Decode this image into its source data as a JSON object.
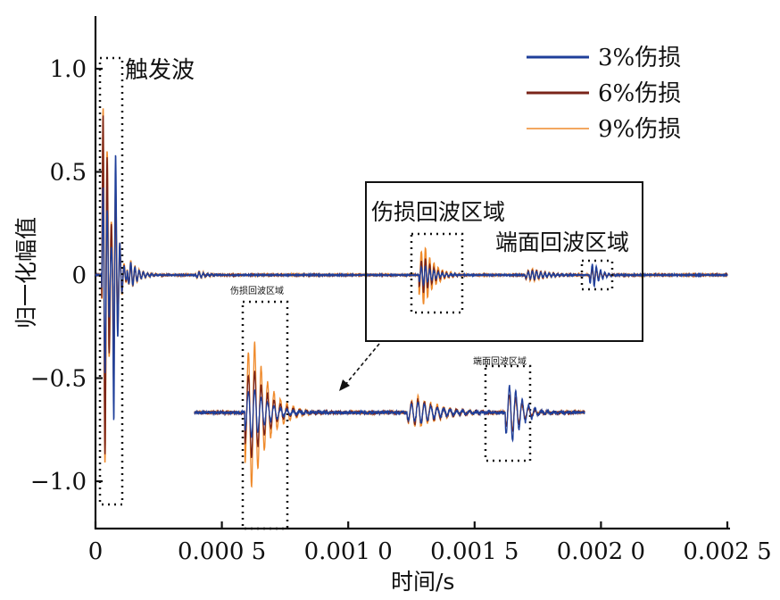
{
  "chart_data": {
    "type": "line",
    "title": "",
    "xlabel": "时间/s",
    "ylabel": "归一化幅值",
    "xlim": [
      0,
      0.0025
    ],
    "ylim": [
      -1.25,
      1.25
    ],
    "x_ticks": [
      {
        "value": 0,
        "label": "0"
      },
      {
        "value": 0.0005,
        "label": "0.000 5"
      },
      {
        "value": 0.001,
        "label": "0.001 0"
      },
      {
        "value": 0.0015,
        "label": "0.001 5"
      },
      {
        "value": 0.002,
        "label": "0.002 0"
      },
      {
        "value": 0.0025,
        "label": "0.002 5"
      }
    ],
    "y_ticks": [
      {
        "value": 1.0,
        "label": "1.0"
      },
      {
        "value": 0.5,
        "label": "0.5"
      },
      {
        "value": 0,
        "label": "0"
      },
      {
        "value": -0.5,
        "label": "−0.5"
      },
      {
        "value": -1.0,
        "label": "−1.0"
      }
    ],
    "legend": [
      {
        "label": "3%伤损",
        "color": "#1f3f9a"
      },
      {
        "label": "6%伤损",
        "color": "#7a2419"
      },
      {
        "label": "9%伤损",
        "color": "#ef8a2b"
      }
    ],
    "legend_position": "top-right",
    "series": [
      {
        "name": "3%伤损",
        "color": "#1f3f9a",
        "components": [
          {
            "t": 3.5e-05,
            "amplitude": 0.55,
            "decay": 2e-05
          },
          {
            "t": 7.5e-05,
            "amplitude": 0.8,
            "decay": 1.2e-05
          },
          {
            "t": 0.00014,
            "amplitude": 0.07,
            "decay": 3e-05
          },
          {
            "t": 0.00041,
            "amplitude": 0.015,
            "decay": 3e-05
          },
          {
            "t": 0.0013,
            "amplitude": 0.05,
            "decay": 4e-05
          },
          {
            "t": 0.00173,
            "amplitude": 0.02,
            "decay": 6e-05
          },
          {
            "t": 0.00197,
            "amplitude": 0.06,
            "decay": 3e-05
          }
        ]
      },
      {
        "name": "6%伤损",
        "color": "#7a2419",
        "components": [
          {
            "t": 3.5e-05,
            "amplitude": 1.0,
            "decay": 2e-05
          },
          {
            "t": 7.5e-05,
            "amplitude": 0.35,
            "decay": 1.5e-05
          },
          {
            "t": 0.00014,
            "amplitude": 0.06,
            "decay": 3e-05
          },
          {
            "t": 0.00041,
            "amplitude": 0.012,
            "decay": 3e-05
          },
          {
            "t": 0.0013,
            "amplitude": 0.09,
            "decay": 4e-05
          },
          {
            "t": 0.00173,
            "amplitude": 0.025,
            "decay": 6e-05
          },
          {
            "t": 0.00197,
            "amplitude": 0.04,
            "decay": 3e-05
          }
        ]
      },
      {
        "name": "9%伤损",
        "color": "#ef8a2b",
        "components": [
          {
            "t": 3.5e-05,
            "amplitude": 1.05,
            "decay": 2e-05
          },
          {
            "t": 7.5e-05,
            "amplitude": 0.45,
            "decay": 1.5e-05
          },
          {
            "t": 0.00014,
            "amplitude": 0.08,
            "decay": 3e-05
          },
          {
            "t": 0.00041,
            "amplitude": 0.02,
            "decay": 3e-05
          },
          {
            "t": 0.0013,
            "amplitude": 0.15,
            "decay": 4e-05
          },
          {
            "t": 0.00173,
            "amplitude": 0.03,
            "decay": 6e-05
          },
          {
            "t": 0.00197,
            "amplitude": 0.035,
            "decay": 3e-05
          }
        ]
      }
    ],
    "annotations": [
      {
        "text": "触发波",
        "x_range": [
          1.5e-05,
          0.00011
        ]
      },
      {
        "text": "伤损回波区域",
        "x_range": [
          0.00125,
          0.00146
        ]
      },
      {
        "text": "端面回波区域",
        "x_range": [
          0.00192,
          0.00203
        ]
      }
    ],
    "inset": {
      "description_labels": [
        "伤损回波区域",
        "端面回波区域"
      ],
      "x_range": [
        0.00115,
        0.00216
      ],
      "baseline": -0.68
    }
  }
}
